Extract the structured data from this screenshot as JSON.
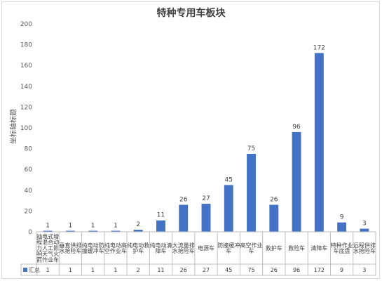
{
  "chart_data": {
    "type": "bar",
    "title": "特种专用车板块",
    "xlabel": "",
    "ylabel": "坐标轴标题",
    "ylim": [
      0,
      200
    ],
    "yticks": [
      0,
      20,
      40,
      60,
      80,
      100,
      120,
      140,
      160,
      180,
      200
    ],
    "grid": false,
    "legend": "none",
    "categories": [
      "抽电式增程混合动力人工影响天气火箭作业车",
      "垂直供排水抢险车",
      "纯电动防撞缓冲车",
      "纯电动高空作业车",
      "纯电动救护车",
      "纯电动清障车",
      "大流量排水抢险车",
      "电源车",
      "防撞缓冲车",
      "高空作业车",
      "救护车",
      "救险车",
      "清障车",
      "特种作业车底盘",
      "远程供排水抢险车"
    ],
    "series": [
      {
        "name": "汇总",
        "values": [
          1,
          1,
          1,
          1,
          2,
          11,
          26,
          27,
          45,
          75,
          26,
          96,
          172,
          9,
          3
        ]
      }
    ],
    "bar_color": "#4472c4"
  }
}
